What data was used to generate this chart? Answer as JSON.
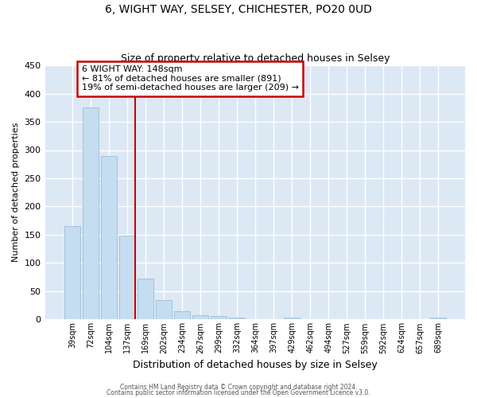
{
  "title": "6, WIGHT WAY, SELSEY, CHICHESTER, PO20 0UD",
  "subtitle": "Size of property relative to detached houses in Selsey",
  "xlabel": "Distribution of detached houses by size in Selsey",
  "ylabel": "Number of detached properties",
  "bar_labels": [
    "39sqm",
    "72sqm",
    "104sqm",
    "137sqm",
    "169sqm",
    "202sqm",
    "234sqm",
    "267sqm",
    "299sqm",
    "332sqm",
    "364sqm",
    "397sqm",
    "429sqm",
    "462sqm",
    "494sqm",
    "527sqm",
    "559sqm",
    "592sqm",
    "624sqm",
    "657sqm",
    "689sqm"
  ],
  "bar_values": [
    165,
    375,
    290,
    148,
    72,
    35,
    14,
    7,
    6,
    3,
    0,
    0,
    4,
    0,
    0,
    0,
    0,
    0,
    0,
    0,
    4
  ],
  "bar_color": "#c5ddf0",
  "bar_edge_color": "#9bbdd8",
  "bg_color": "#dde8f5",
  "grid_color": "#ffffff",
  "ylim": [
    0,
    450
  ],
  "yticks": [
    0,
    50,
    100,
    150,
    200,
    250,
    300,
    350,
    400,
    450
  ],
  "property_line_color": "#cc0000",
  "annotation_title": "6 WIGHT WAY: 148sqm",
  "annotation_line1": "← 81% of detached houses are smaller (891)",
  "annotation_line2": "19% of semi-detached houses are larger (209) →",
  "annotation_box_color": "#cc0000",
  "footer1": "Contains HM Land Registry data © Crown copyright and database right 2024.",
  "footer2": "Contains public sector information licensed under the Open Government Licence v3.0."
}
